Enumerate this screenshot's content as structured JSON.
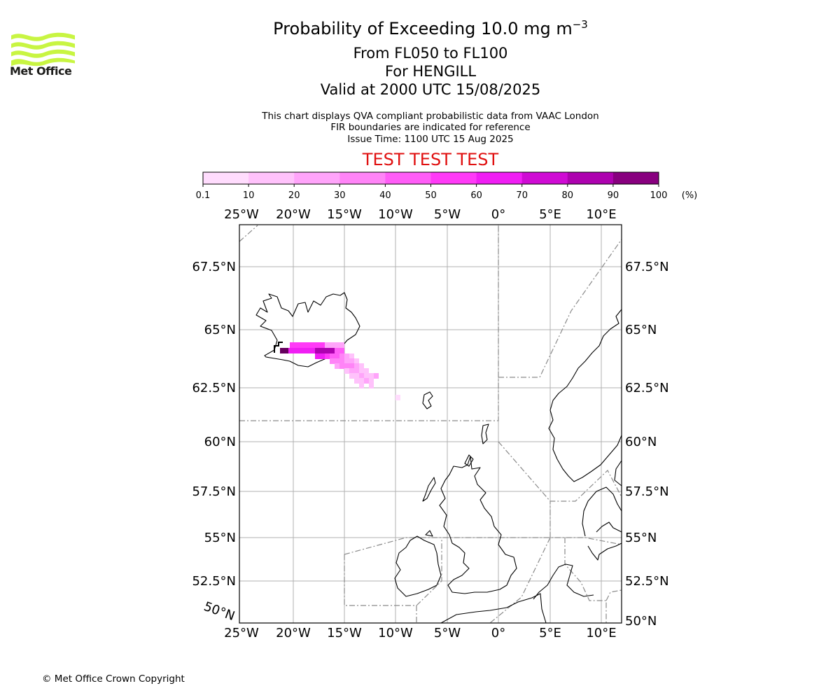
{
  "header": {
    "title_main": "Probability of Exceeding 10.0 mg m",
    "title_exponent": "−3",
    "level_range": "From FL050 to FL100",
    "volcano": "For HENGILL",
    "valid_time": "Valid at 2000 UTC 15/08/2025",
    "note_line1": "This chart displays QVA compliant probabilistic data from VAAC London",
    "note_line2": "FIR boundaries are indicated for reference",
    "issue_time": "Issue Time: 1100 UTC 15 Aug 2025",
    "test_banner": "TEST TEST TEST"
  },
  "logo": {
    "text": "Met Office",
    "color": "#c8f542"
  },
  "colorbar": {
    "ticks": [
      "0.1",
      "10",
      "20",
      "30",
      "40",
      "50",
      "60",
      "70",
      "80",
      "90",
      "100"
    ],
    "unit": "(%)",
    "colors": [
      "#ffdcfd",
      "#ffc2fb",
      "#ffa4fa",
      "#ff84f7",
      "#ff5df7",
      "#ff3af7",
      "#f01ef4",
      "#cf0bd4",
      "#ad02af",
      "#88007f",
      "#66005e"
    ]
  },
  "map": {
    "lon_labels": [
      "25°W",
      "20°W",
      "15°W",
      "10°W",
      "5°W",
      "0°",
      "5°E",
      "10°E"
    ],
    "lat_labels": [
      "67.5°N",
      "65°N",
      "62.5°N",
      "60°N",
      "57.5°N",
      "55°N",
      "52.5°N",
      "50°N"
    ],
    "corner_label": "50°N"
  },
  "footer": {
    "copyright": "© Met Office Crown Copyright"
  }
}
